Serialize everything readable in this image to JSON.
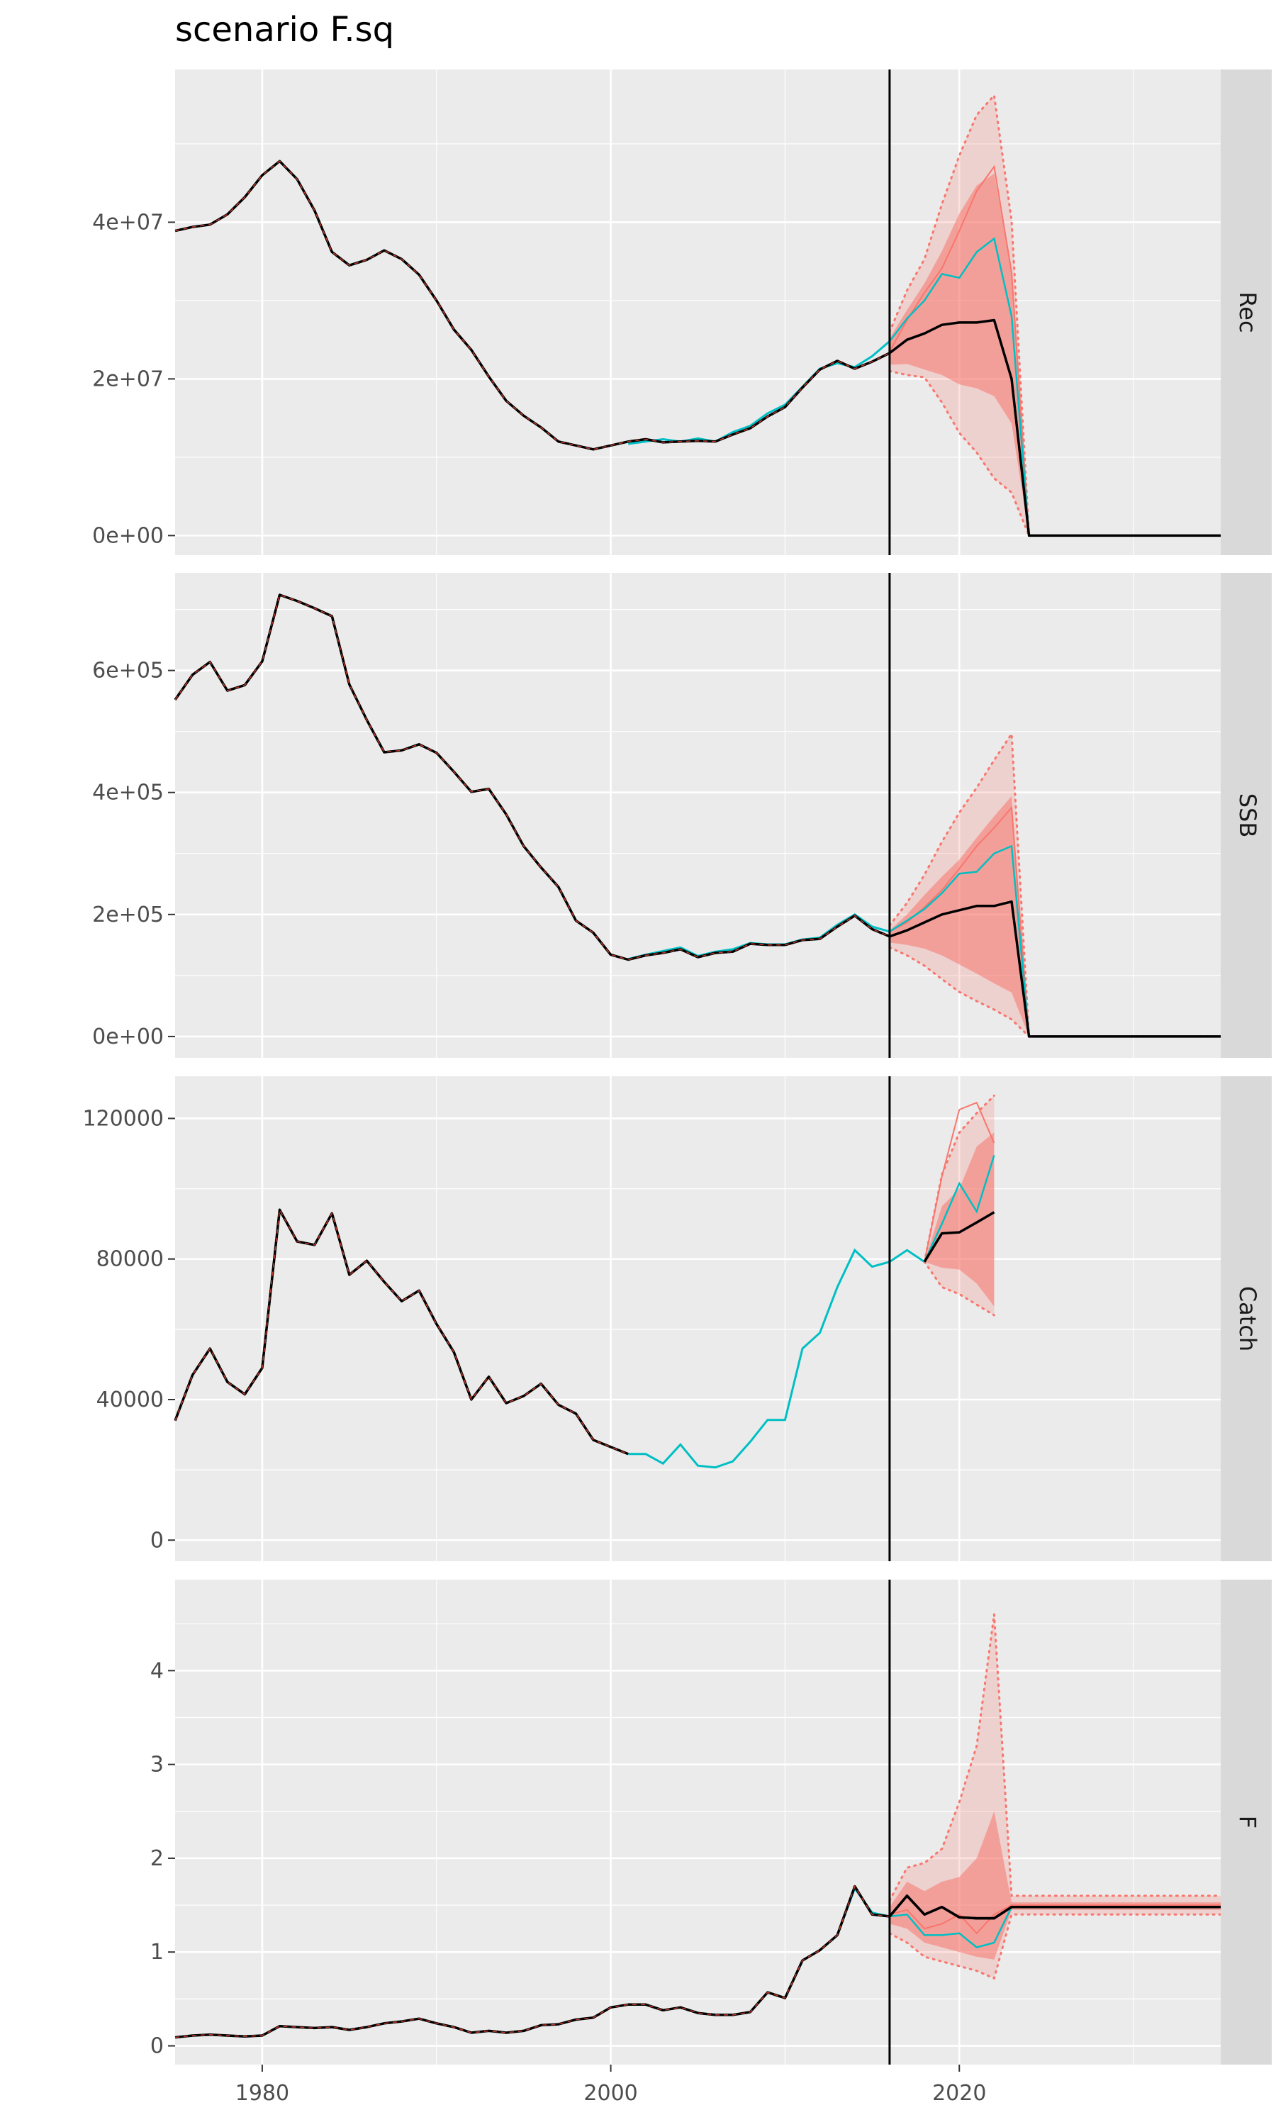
{
  "title": "scenario F.sq",
  "colors": {
    "panel_bg": "#ebebeb",
    "grid": "#ffffff",
    "strip_bg": "#d9d9d9",
    "median": "#000000",
    "band": "#f8766d",
    "teal": "#00bfc4",
    "salmon": "#f8766d",
    "vline": "#000000"
  },
  "chart_data": [
    {
      "type": "line",
      "panel": "Rec",
      "x_ticks": [
        "1980",
        "2000",
        "2020"
      ],
      "xlim": [
        1975,
        2035
      ],
      "y_ticks": [
        "0e+00",
        "2e+07",
        "4e+07"
      ],
      "y_tick_values": [
        0,
        20000000,
        40000000
      ],
      "ylim": [
        -2500000,
        59500000
      ],
      "vline_year": 2016,
      "history": {
        "x": [
          1975,
          1976,
          1977,
          1978,
          1979,
          1980,
          1981,
          1982,
          1983,
          1984,
          1985,
          1986,
          1987,
          1988,
          1989,
          1990,
          1991,
          1992,
          1993,
          1994,
          1995,
          1996,
          1997,
          1998,
          1999,
          2000,
          2001,
          2002,
          2003,
          2004,
          2005,
          2006,
          2007,
          2008,
          2009,
          2010,
          2011,
          2012,
          2013,
          2014,
          2015,
          2016
        ],
        "y": [
          38900000,
          39400000,
          39700000,
          41000000,
          43200000,
          46000000,
          47800000,
          45500000,
          41500000,
          36200000,
          34500000,
          35200000,
          36400000,
          35300000,
          33300000,
          30000000,
          26300000,
          23700000,
          20300000,
          17200000,
          15300000,
          13800000,
          12000000,
          11500000,
          11000000,
          11500000,
          12000000,
          12300000,
          11900000,
          12000000,
          12100000,
          12000000,
          12900000,
          13700000,
          15200000,
          16400000,
          18900000,
          21200000,
          22300000,
          21300000,
          22200000,
          23300000
        ]
      },
      "teal_hist": {
        "x": [
          2001,
          2002,
          2003,
          2004,
          2005,
          2006,
          2007,
          2008,
          2009,
          2010,
          2011,
          2012,
          2013,
          2014,
          2015,
          2016
        ],
        "y": [
          11700000,
          12000000,
          12300000,
          12000000,
          12400000,
          12000000,
          13200000,
          14000000,
          15600000,
          16700000,
          19000000,
          21300000,
          22000000,
          21500000,
          22900000,
          24800000
        ]
      },
      "projection": {
        "x": [
          2016,
          2017,
          2018,
          2019,
          2020,
          2021,
          2022,
          2023,
          2024,
          2025,
          2026,
          2027,
          2028,
          2029,
          2030,
          2031,
          2032,
          2033,
          2034,
          2035
        ],
        "median": [
          23300000,
          25000000,
          25800000,
          26900000,
          27200000,
          27200000,
          27500000,
          20000000,
          0,
          0,
          0,
          0,
          0,
          0,
          0,
          0,
          0,
          0,
          0,
          0
        ],
        "band50_lo": [
          21800000,
          21900000,
          21200000,
          20500000,
          19300000,
          18800000,
          17800000,
          14300000,
          0,
          0,
          0,
          0,
          0,
          0,
          0,
          0,
          0,
          0,
          0,
          0
        ],
        "band50_hi": [
          25200000,
          28800000,
          32200000,
          36300000,
          41100000,
          44700000,
          46200000,
          33600000,
          0,
          0,
          0,
          0,
          0,
          0,
          0,
          0,
          0,
          0,
          0,
          0
        ],
        "band90_lo": [
          21000000,
          20500000,
          20200000,
          17000000,
          13100000,
          10600000,
          7300000,
          5500000,
          0,
          0,
          0,
          0,
          0,
          0,
          0,
          0,
          0,
          0,
          0,
          0
        ],
        "band90_hi": [
          26000000,
          31300000,
          35300000,
          42300000,
          48500000,
          53700000,
          56200000,
          40200000,
          0,
          0,
          0,
          0,
          0,
          0,
          0,
          0,
          0,
          0,
          0,
          0
        ],
        "salmon": [
          23500000,
          27500000,
          31000000,
          34100000,
          38900000,
          44000000,
          47100000,
          33600000,
          0,
          0,
          0,
          0,
          0,
          0,
          0,
          0,
          0,
          0,
          0,
          0
        ],
        "teal": [
          24800000,
          27700000,
          30000000,
          33400000,
          32900000,
          36200000,
          37900000,
          28000000,
          0,
          0,
          0,
          0,
          0,
          0,
          0,
          0,
          0,
          0,
          0,
          0
        ]
      }
    },
    {
      "type": "line",
      "panel": "SSB",
      "x_ticks": [
        "1980",
        "2000",
        "2020"
      ],
      "xlim": [
        1975,
        2035
      ],
      "y_ticks": [
        "0e+00",
        "2e+05",
        "4e+05",
        "6e+05"
      ],
      "y_tick_values": [
        0,
        200000,
        400000,
        600000
      ],
      "ylim": [
        -35000,
        760000
      ],
      "vline_year": 2016,
      "history": {
        "x": [
          1975,
          1976,
          1977,
          1978,
          1979,
          1980,
          1981,
          1982,
          1983,
          1984,
          1985,
          1986,
          1987,
          1988,
          1989,
          1990,
          1991,
          1992,
          1993,
          1994,
          1995,
          1996,
          1997,
          1998,
          1999,
          2000,
          2001,
          2002,
          2003,
          2004,
          2005,
          2006,
          2007,
          2008,
          2009,
          2010,
          2011,
          2012,
          2013,
          2014,
          2015,
          2016
        ],
        "y": [
          552000,
          593000,
          614000,
          567000,
          576000,
          615000,
          724000,
          714000,
          702000,
          689000,
          577000,
          519000,
          466000,
          469000,
          479000,
          465000,
          434000,
          401000,
          406000,
          364000,
          312000,
          277000,
          245000,
          190000,
          170000,
          134000,
          126000,
          133000,
          137000,
          143000,
          130000,
          137000,
          139000,
          152000,
          150000,
          150000,
          158000,
          160000,
          180000,
          198000,
          176000,
          164000
        ]
      },
      "teal_hist": {
        "x": [
          2001,
          2002,
          2003,
          2004,
          2005,
          2006,
          2007,
          2008,
          2009,
          2010,
          2011,
          2012,
          2013,
          2014,
          2015,
          2016
        ],
        "y": [
          127000,
          134000,
          140000,
          146000,
          132000,
          139000,
          143000,
          153000,
          151000,
          151000,
          159000,
          162000,
          183000,
          200000,
          180000,
          172000
        ]
      },
      "projection": {
        "x": [
          2016,
          2017,
          2018,
          2019,
          2020,
          2021,
          2022,
          2023,
          2024,
          2025,
          2026,
          2027,
          2028,
          2029,
          2030,
          2031,
          2032,
          2033,
          2034,
          2035
        ],
        "median": [
          164000,
          174000,
          187000,
          200000,
          207000,
          214000,
          214000,
          221000,
          0,
          0,
          0,
          0,
          0,
          0,
          0,
          0,
          0,
          0,
          0,
          0
        ],
        "band50_lo": [
          154000,
          150000,
          144000,
          133000,
          118000,
          103000,
          87000,
          72000,
          0,
          0,
          0,
          0,
          0,
          0,
          0,
          0,
          0,
          0,
          0,
          0
        ],
        "band50_hi": [
          174000,
          200000,
          232000,
          262000,
          290000,
          326000,
          361000,
          394000,
          0,
          0,
          0,
          0,
          0,
          0,
          0,
          0,
          0,
          0,
          0,
          0
        ],
        "band90_lo": [
          146000,
          133000,
          116000,
          94000,
          73000,
          58000,
          44000,
          28000,
          0,
          0,
          0,
          0,
          0,
          0,
          0,
          0,
          0,
          0,
          0,
          0
        ],
        "band90_hi": [
          182000,
          219000,
          265000,
          319000,
          367000,
          408000,
          453000,
          496000,
          0,
          0,
          0,
          0,
          0,
          0,
          0,
          0,
          0,
          0,
          0,
          0
        ],
        "salmon": [
          172000,
          187000,
          212000,
          240000,
          275000,
          312000,
          342000,
          375000,
          0,
          0,
          0,
          0,
          0,
          0,
          0,
          0,
          0,
          0,
          0,
          0
        ],
        "teal": [
          172000,
          190000,
          209000,
          235000,
          267000,
          270000,
          300000,
          312000,
          0,
          0,
          0,
          0,
          0,
          0,
          0,
          0,
          0,
          0,
          0,
          0
        ]
      }
    },
    {
      "type": "line",
      "panel": "Catch",
      "x_ticks": [
        "1980",
        "2000",
        "2020"
      ],
      "xlim": [
        1975,
        2035
      ],
      "y_ticks": [
        "0",
        "40000",
        "80000",
        "120000"
      ],
      "y_tick_values": [
        0,
        40000,
        80000,
        120000
      ],
      "ylim": [
        -6000,
        132000
      ],
      "vline_year": 2016,
      "history": {
        "x": [
          1975,
          1976,
          1977,
          1978,
          1979,
          1980,
          1981,
          1982,
          1983,
          1984,
          1985,
          1986,
          1987,
          1988,
          1989,
          1990,
          1991,
          1992,
          1993,
          1994,
          1995,
          1996,
          1997,
          1998,
          1999,
          2000,
          2001
        ],
        "y": [
          34000,
          47000,
          54500,
          45000,
          41500,
          49000,
          94000,
          85000,
          84000,
          93000,
          75500,
          79500,
          73500,
          68000,
          71000,
          61500,
          53500,
          40000,
          46500,
          39000,
          41000,
          44500,
          38500,
          36000,
          28500,
          26500,
          24500
        ]
      },
      "teal_hist": {
        "x": [
          2001,
          2002,
          2003,
          2004,
          2005,
          2006,
          2007,
          2008,
          2009,
          2010,
          2011,
          2012,
          2013,
          2014,
          2015,
          2016,
          2017,
          2018
        ],
        "y": [
          24500,
          24500,
          21800,
          27200,
          21200,
          20700,
          22400,
          28000,
          34200,
          34200,
          54500,
          59000,
          72000,
          82500,
          77800,
          79200,
          82500,
          79200
        ]
      },
      "projection": {
        "x": [
          2018,
          2019,
          2020,
          2021,
          2022
        ],
        "median": [
          79200,
          87300,
          87600,
          90400,
          93300
        ],
        "band50_lo": [
          79200,
          77500,
          77000,
          73000,
          66500
        ],
        "band50_hi": [
          79200,
          95000,
          100000,
          112000,
          116000
        ],
        "band90_lo": [
          79200,
          72000,
          70000,
          67000,
          64000
        ],
        "band90_hi": [
          79200,
          104000,
          116000,
          121500,
          126500
        ],
        "salmon": [
          79200,
          103500,
          122500,
          124500,
          113000
        ],
        "teal": [
          79200,
          90000,
          101500,
          93500,
          109500
        ]
      }
    },
    {
      "type": "line",
      "panel": "F",
      "x_ticks": [
        "1980",
        "2000",
        "2020"
      ],
      "xlim": [
        1975,
        2035
      ],
      "y_ticks": [
        "0",
        "1",
        "2",
        "3",
        "4"
      ],
      "y_tick_values": [
        0,
        1,
        2,
        3,
        4
      ],
      "ylim": [
        -0.2,
        4.97
      ],
      "vline_year": 2016,
      "history": {
        "x": [
          1975,
          1976,
          1977,
          1978,
          1979,
          1980,
          1981,
          1982,
          1983,
          1984,
          1985,
          1986,
          1987,
          1988,
          1989,
          1990,
          1991,
          1992,
          1993,
          1994,
          1995,
          1996,
          1997,
          1998,
          1999,
          2000,
          2001,
          2002,
          2003,
          2004,
          2005,
          2006,
          2007,
          2008,
          2009,
          2010,
          2011,
          2012,
          2013,
          2014,
          2015,
          2016,
          2017,
          2018,
          2019,
          2020,
          2021,
          2022,
          2023,
          2024,
          2025,
          2026,
          2027,
          2028,
          2029,
          2030,
          2031,
          2032,
          2033,
          2034,
          2035
        ],
        "y": [
          0.09,
          0.11,
          0.12,
          0.11,
          0.1,
          0.11,
          0.21,
          0.2,
          0.19,
          0.2,
          0.17,
          0.2,
          0.24,
          0.26,
          0.29,
          0.24,
          0.2,
          0.14,
          0.16,
          0.14,
          0.16,
          0.22,
          0.23,
          0.28,
          0.3,
          0.41,
          0.44,
          0.44,
          0.38,
          0.41,
          0.35,
          0.33,
          0.33,
          0.36,
          0.57,
          0.51,
          0.91,
          1.02,
          1.18,
          1.7,
          1.4,
          1.38,
          1.6,
          1.4,
          1.48,
          1.37,
          1.36,
          1.36,
          1.48,
          1.48,
          1.48,
          1.48,
          1.48,
          1.48,
          1.48,
          1.48,
          1.48,
          1.48,
          1.48,
          1.48,
          1.48
        ]
      },
      "teal_hist": {
        "x": [
          2001,
          2002,
          2003,
          2004,
          2005,
          2006,
          2007,
          2008,
          2009,
          2010,
          2011,
          2012,
          2013,
          2014,
          2015,
          2016
        ],
        "y": [
          0.44,
          0.44,
          0.38,
          0.41,
          0.35,
          0.33,
          0.33,
          0.36,
          0.57,
          0.51,
          0.91,
          1.02,
          1.18,
          1.68,
          1.42,
          1.38
        ]
      },
      "projection": {
        "x": [
          2016,
          2017,
          2018,
          2019,
          2020,
          2021,
          2022,
          2023,
          2024,
          2025,
          2026,
          2027,
          2028,
          2029,
          2030,
          2031,
          2032,
          2033,
          2034,
          2035
        ],
        "median": [
          1.38,
          1.6,
          1.4,
          1.48,
          1.37,
          1.36,
          1.36,
          1.48,
          1.48,
          1.48,
          1.48,
          1.48,
          1.48,
          1.48,
          1.48,
          1.48,
          1.48,
          1.48,
          1.48,
          1.48
        ],
        "band50_lo": [
          1.3,
          1.25,
          1.1,
          1.05,
          1.0,
          0.95,
          0.92,
          1.45,
          1.45,
          1.45,
          1.45,
          1.45,
          1.45,
          1.45,
          1.45,
          1.45,
          1.45,
          1.45,
          1.45,
          1.45
        ],
        "band50_hi": [
          1.48,
          1.75,
          1.65,
          1.75,
          1.8,
          2.0,
          2.5,
          1.53,
          1.53,
          1.53,
          1.53,
          1.53,
          1.53,
          1.53,
          1.53,
          1.53,
          1.53,
          1.53,
          1.53,
          1.53
        ],
        "band90_lo": [
          1.2,
          1.1,
          0.95,
          0.9,
          0.85,
          0.8,
          0.72,
          1.4,
          1.4,
          1.4,
          1.4,
          1.4,
          1.4,
          1.4,
          1.4,
          1.4,
          1.4,
          1.4,
          1.4,
          1.4
        ],
        "band90_hi": [
          1.55,
          1.9,
          1.95,
          2.1,
          2.6,
          3.2,
          4.6,
          1.6,
          1.6,
          1.6,
          1.6,
          1.6,
          1.6,
          1.6,
          1.6,
          1.6,
          1.6,
          1.6,
          1.6,
          1.6
        ],
        "salmon": [
          1.4,
          1.45,
          1.25,
          1.3,
          1.4,
          1.2,
          1.4,
          1.5,
          1.5,
          1.5,
          1.5,
          1.5,
          1.5,
          1.5,
          1.5,
          1.5,
          1.5,
          1.5,
          1.5,
          1.5
        ],
        "teal": [
          1.38,
          1.4,
          1.18,
          1.18,
          1.2,
          1.05,
          1.1,
          1.48,
          1.48,
          1.48,
          1.48,
          1.48,
          1.48,
          1.48,
          1.48,
          1.48,
          1.48,
          1.48,
          1.48,
          1.48
        ]
      }
    }
  ]
}
